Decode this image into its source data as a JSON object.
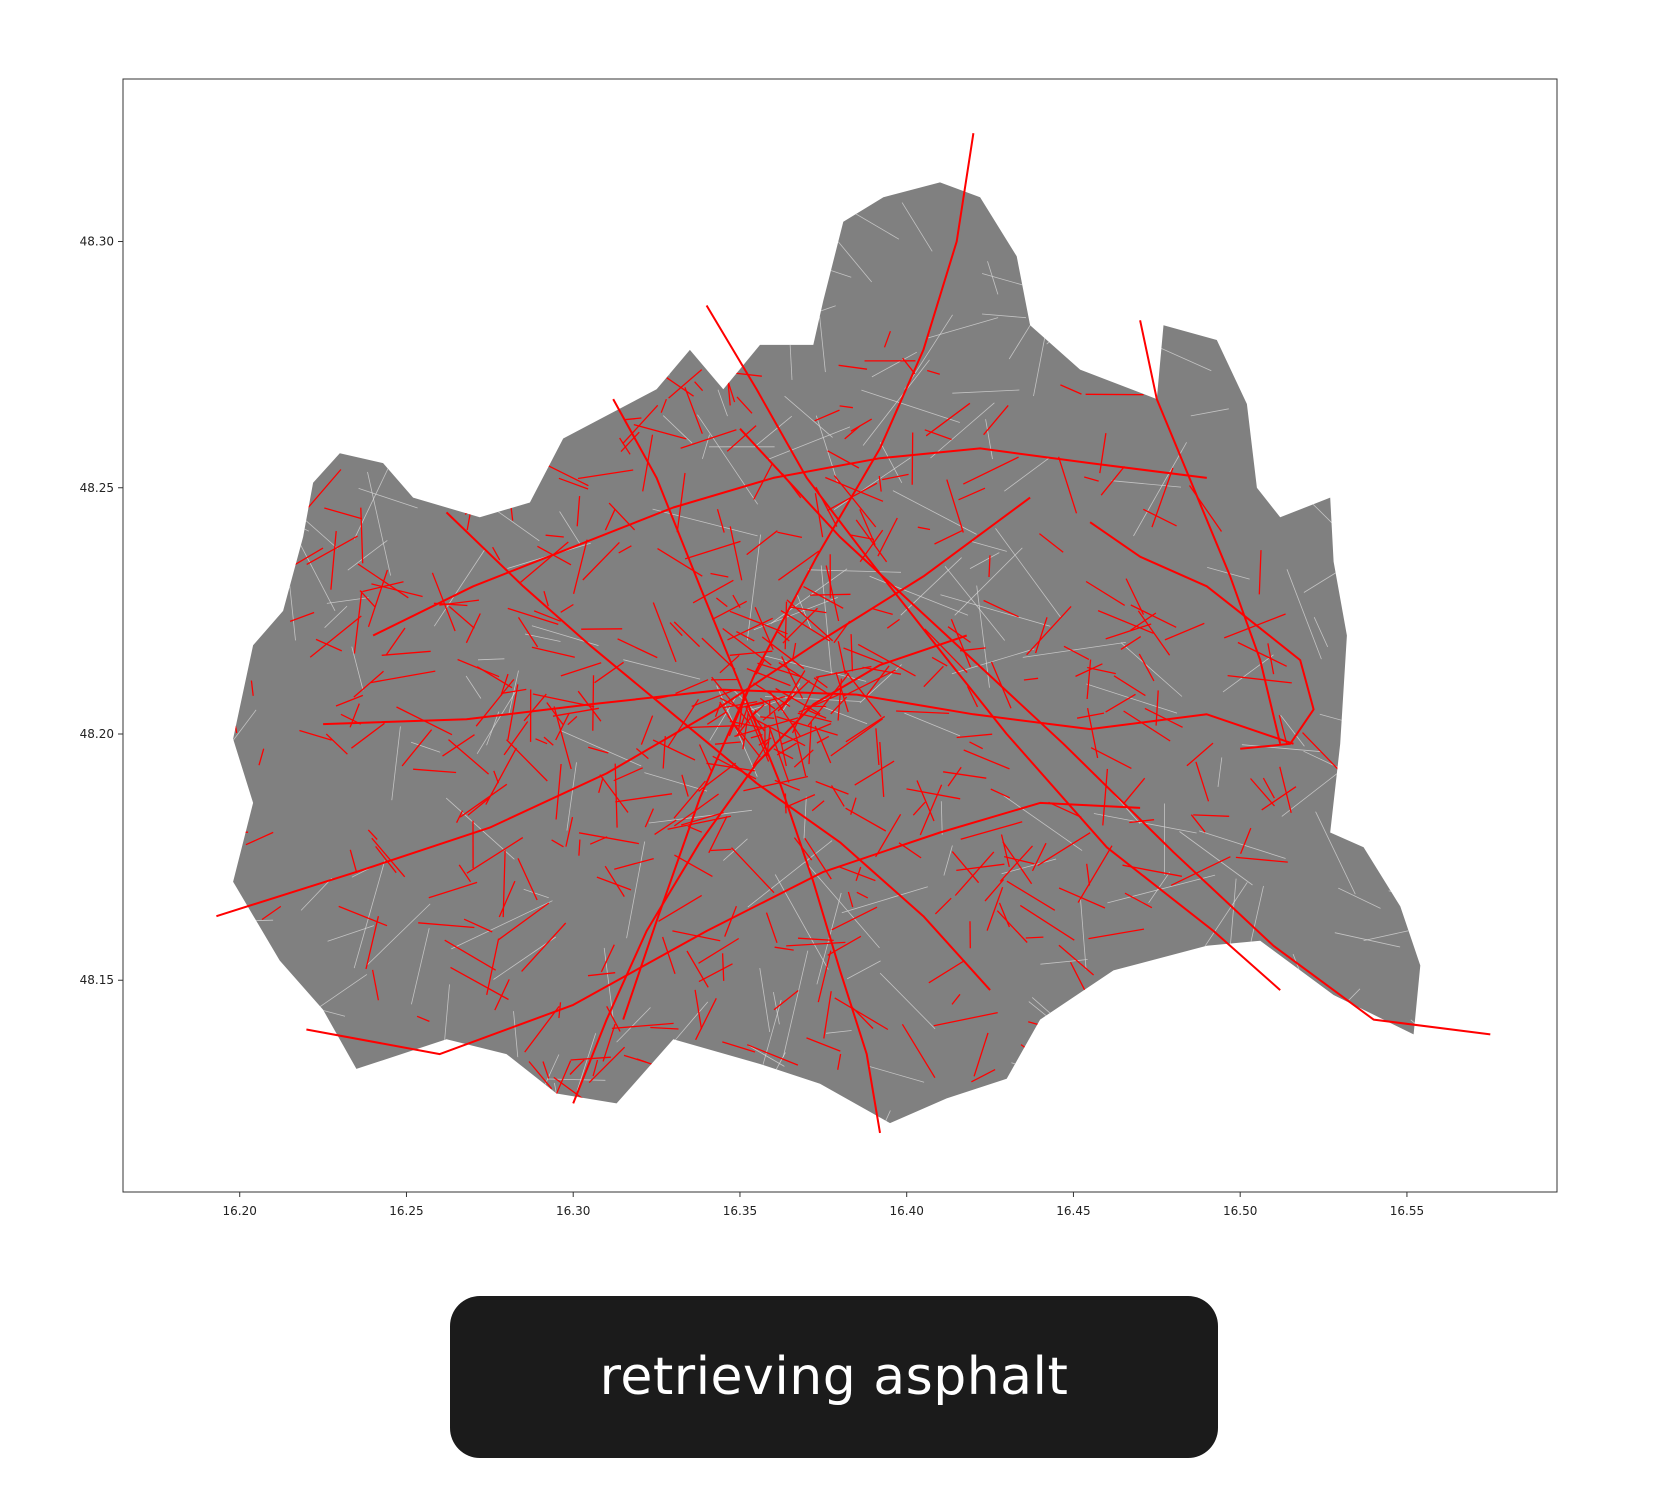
{
  "caption": "retrieving asphalt",
  "colors": {
    "land": "#808080",
    "road_network": "#d9d9d9",
    "highlight_roads": "#ff0000",
    "caption_bg": "#1b1b1b",
    "caption_text": "#ffffff"
  },
  "chart_data": {
    "type": "map",
    "title": "",
    "xlabel": "",
    "ylabel": "",
    "xlim": [
      16.165,
      16.595
    ],
    "ylim": [
      48.107,
      48.333
    ],
    "x_ticks": [
      "16.20",
      "16.25",
      "16.30",
      "16.35",
      "16.40",
      "16.45",
      "16.50",
      "16.55"
    ],
    "y_ticks": [
      "48.15",
      "48.20",
      "48.25",
      "48.30"
    ],
    "grid": false,
    "legend": "none",
    "series": [
      {
        "kind": "polygon",
        "boundary": [
          [
            16.198,
            48.17
          ],
          [
            16.204,
            48.186
          ],
          [
            16.198,
            48.199
          ],
          [
            16.204,
            48.218
          ],
          [
            16.213,
            48.225
          ],
          [
            16.219,
            48.24
          ],
          [
            16.222,
            48.251
          ],
          [
            16.23,
            48.257
          ],
          [
            16.243,
            48.255
          ],
          [
            16.252,
            48.248
          ],
          [
            16.272,
            48.244
          ],
          [
            16.287,
            48.247
          ],
          [
            16.297,
            48.26
          ],
          [
            16.325,
            48.27
          ],
          [
            16.335,
            48.278
          ],
          [
            16.345,
            48.27
          ],
          [
            16.356,
            48.279
          ],
          [
            16.372,
            48.279
          ],
          [
            16.375,
            48.288
          ],
          [
            16.381,
            48.304
          ],
          [
            16.393,
            48.309
          ],
          [
            16.41,
            48.312
          ],
          [
            16.422,
            48.309
          ],
          [
            16.433,
            48.297
          ],
          [
            16.437,
            48.283
          ],
          [
            16.452,
            48.274
          ],
          [
            16.475,
            48.268
          ],
          [
            16.477,
            48.283
          ],
          [
            16.493,
            48.28
          ],
          [
            16.502,
            48.267
          ],
          [
            16.505,
            48.25
          ],
          [
            16.512,
            48.244
          ],
          [
            16.527,
            48.248
          ],
          [
            16.528,
            48.235
          ],
          [
            16.532,
            48.22
          ],
          [
            16.53,
            48.198
          ],
          [
            16.527,
            48.18
          ],
          [
            16.537,
            48.177
          ],
          [
            16.548,
            48.165
          ],
          [
            16.554,
            48.153
          ],
          [
            16.552,
            48.139
          ],
          [
            16.528,
            48.147
          ],
          [
            16.506,
            48.158
          ],
          [
            16.49,
            48.157
          ],
          [
            16.462,
            48.152
          ],
          [
            16.44,
            48.142
          ],
          [
            16.43,
            48.13
          ],
          [
            16.412,
            48.126
          ],
          [
            16.395,
            48.121
          ],
          [
            16.374,
            48.129
          ],
          [
            16.356,
            48.133
          ],
          [
            16.33,
            48.138
          ],
          [
            16.313,
            48.125
          ],
          [
            16.295,
            48.127
          ],
          [
            16.28,
            48.135
          ],
          [
            16.262,
            48.138
          ],
          [
            16.235,
            48.132
          ],
          [
            16.225,
            48.144
          ],
          [
            16.212,
            48.154
          ]
        ]
      },
      {
        "kind": "highlighted-route",
        "points": [
          [
            16.193,
            48.163
          ],
          [
            16.235,
            48.172
          ],
          [
            16.275,
            48.181
          ],
          [
            16.31,
            48.192
          ],
          [
            16.343,
            48.205
          ],
          [
            16.372,
            48.218
          ],
          [
            16.405,
            48.232
          ],
          [
            16.437,
            48.248
          ]
        ]
      },
      {
        "kind": "highlighted-route",
        "points": [
          [
            16.225,
            48.202
          ],
          [
            16.268,
            48.203
          ],
          [
            16.305,
            48.206
          ],
          [
            16.345,
            48.209
          ],
          [
            16.385,
            48.208
          ],
          [
            16.42,
            48.204
          ],
          [
            16.455,
            48.201
          ],
          [
            16.49,
            48.204
          ],
          [
            16.516,
            48.198
          ]
        ]
      },
      {
        "kind": "highlighted-route",
        "points": [
          [
            16.35,
            48.262
          ],
          [
            16.38,
            48.24
          ],
          [
            16.412,
            48.22
          ],
          [
            16.447,
            48.198
          ],
          [
            16.48,
            48.176
          ],
          [
            16.51,
            48.157
          ],
          [
            16.54,
            48.142
          ],
          [
            16.575,
            48.139
          ]
        ]
      },
      {
        "kind": "highlighted-route",
        "points": [
          [
            16.42,
            48.322
          ],
          [
            16.415,
            48.3
          ],
          [
            16.405,
            48.278
          ],
          [
            16.392,
            48.258
          ],
          [
            16.373,
            48.236
          ],
          [
            16.355,
            48.213
          ],
          [
            16.338,
            48.187
          ],
          [
            16.325,
            48.162
          ],
          [
            16.315,
            48.142
          ]
        ]
      },
      {
        "kind": "highlighted-route",
        "points": [
          [
            16.34,
            48.287
          ],
          [
            16.355,
            48.27
          ],
          [
            16.37,
            48.252
          ],
          [
            16.388,
            48.236
          ],
          [
            16.41,
            48.217
          ],
          [
            16.43,
            48.2
          ],
          [
            16.46,
            48.177
          ],
          [
            16.492,
            48.16
          ],
          [
            16.512,
            48.148
          ]
        ]
      },
      {
        "kind": "highlighted-route",
        "points": [
          [
            16.24,
            48.22
          ],
          [
            16.27,
            48.23
          ],
          [
            16.3,
            48.238
          ],
          [
            16.33,
            48.246
          ],
          [
            16.36,
            48.252
          ],
          [
            16.392,
            48.256
          ],
          [
            16.422,
            48.258
          ],
          [
            16.455,
            48.255
          ],
          [
            16.49,
            48.252
          ]
        ]
      },
      {
        "kind": "highlighted-route",
        "points": [
          [
            16.22,
            48.14
          ],
          [
            16.26,
            48.135
          ],
          [
            16.3,
            48.145
          ],
          [
            16.34,
            48.16
          ],
          [
            16.375,
            48.172
          ],
          [
            16.41,
            48.18
          ],
          [
            16.44,
            48.186
          ],
          [
            16.47,
            48.185
          ]
        ]
      },
      {
        "kind": "highlighted-route",
        "points": [
          [
            16.47,
            48.284
          ],
          [
            16.475,
            48.268
          ],
          [
            16.486,
            48.25
          ],
          [
            16.497,
            48.232
          ],
          [
            16.506,
            48.215
          ],
          [
            16.512,
            48.198
          ]
        ]
      },
      {
        "kind": "highlighted-route",
        "points": [
          [
            16.3,
            48.125
          ],
          [
            16.31,
            48.142
          ],
          [
            16.322,
            48.16
          ],
          [
            16.338,
            48.178
          ],
          [
            16.355,
            48.194
          ],
          [
            16.372,
            48.206
          ],
          [
            16.392,
            48.214
          ],
          [
            16.418,
            48.22
          ]
        ]
      },
      {
        "kind": "highlighted-route",
        "points": [
          [
            16.262,
            48.245
          ],
          [
            16.285,
            48.23
          ],
          [
            16.305,
            48.218
          ],
          [
            16.33,
            48.204
          ],
          [
            16.355,
            48.19
          ],
          [
            16.38,
            48.178
          ],
          [
            16.405,
            48.163
          ],
          [
            16.425,
            48.148
          ]
        ]
      },
      {
        "kind": "highlighted-route",
        "points": [
          [
            16.392,
            48.119
          ],
          [
            16.388,
            48.135
          ],
          [
            16.38,
            48.152
          ],
          [
            16.372,
            48.17
          ],
          [
            16.362,
            48.19
          ],
          [
            16.35,
            48.21
          ],
          [
            16.338,
            48.23
          ],
          [
            16.325,
            48.252
          ],
          [
            16.312,
            48.268
          ]
        ]
      },
      {
        "kind": "highlighted-route",
        "points": [
          [
            16.455,
            48.243
          ],
          [
            16.47,
            48.236
          ],
          [
            16.49,
            48.23
          ],
          [
            16.505,
            48.222
          ],
          [
            16.518,
            48.215
          ],
          [
            16.522,
            48.205
          ],
          [
            16.515,
            48.198
          ],
          [
            16.5,
            48.197
          ]
        ]
      }
    ]
  }
}
